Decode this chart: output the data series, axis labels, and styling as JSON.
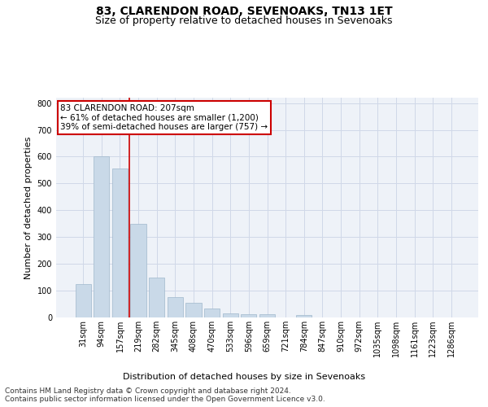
{
  "title": "83, CLARENDON ROAD, SEVENOAKS, TN13 1ET",
  "subtitle": "Size of property relative to detached houses in Sevenoaks",
  "xlabel": "Distribution of detached houses by size in Sevenoaks",
  "ylabel": "Number of detached properties",
  "categories": [
    "31sqm",
    "94sqm",
    "157sqm",
    "219sqm",
    "282sqm",
    "345sqm",
    "408sqm",
    "470sqm",
    "533sqm",
    "596sqm",
    "659sqm",
    "721sqm",
    "784sqm",
    "847sqm",
    "910sqm",
    "972sqm",
    "1035sqm",
    "1098sqm",
    "1161sqm",
    "1223sqm",
    "1286sqm"
  ],
  "values": [
    125,
    600,
    555,
    350,
    150,
    75,
    55,
    33,
    15,
    12,
    12,
    0,
    8,
    0,
    0,
    0,
    0,
    0,
    0,
    0,
    0
  ],
  "bar_color": "#c9d9e8",
  "bar_edge_color": "#a0b8cc",
  "grid_color": "#d0d8e8",
  "background_color": "#eef2f8",
  "vline_color": "#cc0000",
  "annotation_text": "83 CLARENDON ROAD: 207sqm\n← 61% of detached houses are smaller (1,200)\n39% of semi-detached houses are larger (757) →",
  "annotation_box_color": "white",
  "annotation_box_edge_color": "#cc0000",
  "ylim": [
    0,
    820
  ],
  "yticks": [
    0,
    100,
    200,
    300,
    400,
    500,
    600,
    700,
    800
  ],
  "footer": "Contains HM Land Registry data © Crown copyright and database right 2024.\nContains public sector information licensed under the Open Government Licence v3.0.",
  "title_fontsize": 10,
  "subtitle_fontsize": 9,
  "axis_label_fontsize": 8,
  "tick_fontsize": 7,
  "footer_fontsize": 6.5,
  "annotation_fontsize": 7.5
}
